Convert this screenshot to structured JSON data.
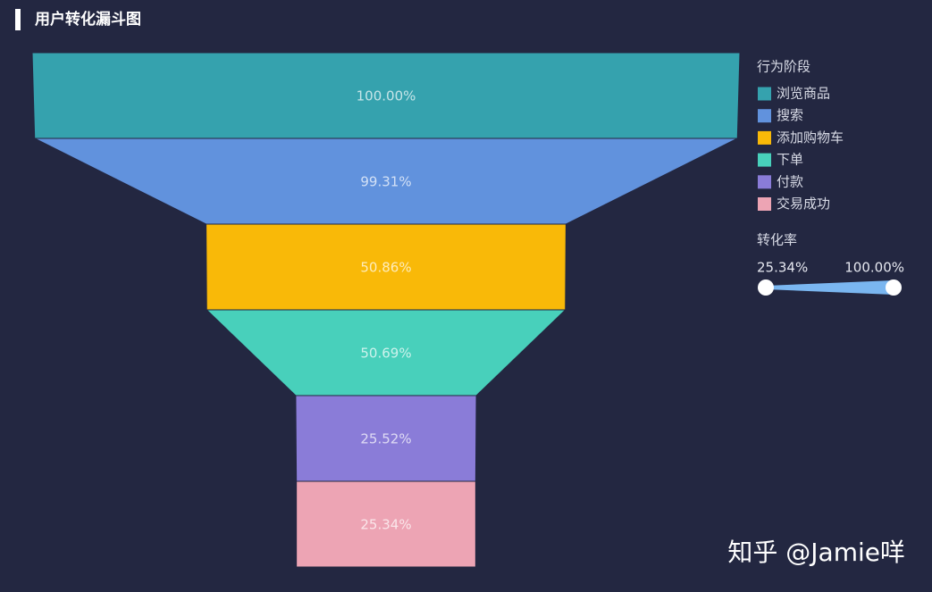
{
  "chart_data": {
    "type": "funnel",
    "title": "用户转化漏斗图",
    "legend_title": "行为阶段",
    "categories": [
      "浏览商品",
      "搜索",
      "添加购物车",
      "下单",
      "付款",
      "交易成功"
    ],
    "values": [
      100,
      99.31,
      50.86,
      50.69,
      25.52,
      25.34
    ],
    "value_labels": [
      "100.00%",
      "99.31%",
      "50.86%",
      "50.69%",
      "25.52%",
      "25.34%"
    ],
    "colors": [
      "#35a2ae",
      "#6192dd",
      "#f9b908",
      "#48d0bb",
      "#8a7cd8",
      "#eda4b4"
    ],
    "visual_map": {
      "title": "转化率",
      "color": "#7ab6f0",
      "range": [
        {
          "value": 25.34,
          "label": "25.34%"
        },
        {
          "value": 100,
          "label": "100.00%"
        }
      ]
    },
    "watermark": "知乎 @Jamie咩"
  }
}
